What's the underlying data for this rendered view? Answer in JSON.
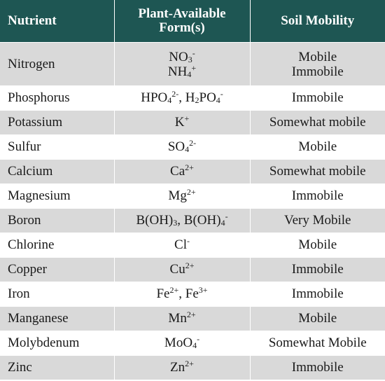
{
  "table": {
    "headers": {
      "nutrient": "Nutrient",
      "form_line1": "Plant-Available",
      "form_line2": "Form(s)",
      "mobility": "Soil Mobility"
    },
    "rows": [
      {
        "nutrient": "Nitrogen",
        "forms": [
          "NO3-",
          "NH4+"
        ],
        "mobility": [
          "Mobile",
          "Immobile"
        ]
      },
      {
        "nutrient": "Phosphorus",
        "forms": [
          "HPO42-, H2PO4-"
        ],
        "mobility": [
          "Immobile"
        ]
      },
      {
        "nutrient": "Potassium",
        "forms": [
          "K+"
        ],
        "mobility": [
          "Somewhat mobile"
        ]
      },
      {
        "nutrient": "Sulfur",
        "forms": [
          "SO42-"
        ],
        "mobility": [
          "Mobile"
        ]
      },
      {
        "nutrient": "Calcium",
        "forms": [
          "Ca2+"
        ],
        "mobility": [
          "Somewhat mobile"
        ]
      },
      {
        "nutrient": "Magnesium",
        "forms": [
          "Mg2+"
        ],
        "mobility": [
          "Immobile"
        ]
      },
      {
        "nutrient": "Boron",
        "forms": [
          "B(OH)3, B(OH)4-"
        ],
        "mobility": [
          "Very Mobile"
        ]
      },
      {
        "nutrient": "Chlorine",
        "forms": [
          "Cl-"
        ],
        "mobility": [
          "Mobile"
        ]
      },
      {
        "nutrient": "Copper",
        "forms": [
          "Cu2+"
        ],
        "mobility": [
          "Immobile"
        ]
      },
      {
        "nutrient": "Iron",
        "forms": [
          "Fe2+, Fe3+"
        ],
        "mobility": [
          "Immobile"
        ]
      },
      {
        "nutrient": "Manganese",
        "forms": [
          "Mn2+"
        ],
        "mobility": [
          "Mobile"
        ]
      },
      {
        "nutrient": "Molybdenum",
        "forms": [
          "MoO4-"
        ],
        "mobility": [
          "Somewhat Mobile"
        ]
      },
      {
        "nutrient": "Zinc",
        "forms": [
          "Zn2+"
        ],
        "mobility": [
          "Immobile"
        ]
      }
    ]
  },
  "colors": {
    "header_bg": "#1e5653",
    "header_text": "#ffffff",
    "row_shaded": "#d9d9d9",
    "row_plain": "#ffffff"
  }
}
